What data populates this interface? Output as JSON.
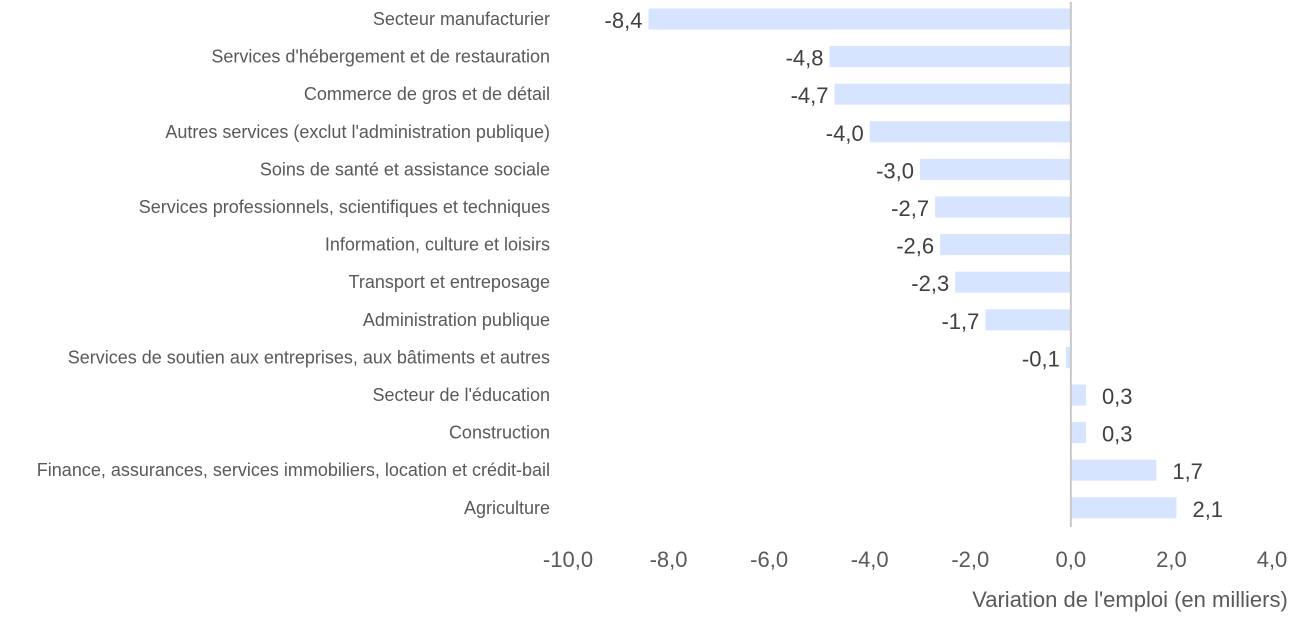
{
  "chart_data": {
    "type": "bar",
    "orientation": "horizontal",
    "categories": [
      "Secteur manufacturier",
      "Services d'hébergement et de restauration",
      "Commerce de gros et de détail",
      "Autres services (exclut l'administration publique)",
      "Soins de santé et assistance sociale",
      "Services professionnels, scientifiques et techniques",
      "Information, culture et loisirs",
      "Transport et entreposage",
      "Administration publique",
      "Services de soutien aux entreprises, aux bâtiments et autres",
      "Secteur de l'éducation",
      "Construction",
      "Finance, assurances, services immobiliers, location et crédit-bail",
      "Agriculture"
    ],
    "values": [
      -8.4,
      -4.8,
      -4.7,
      -4.0,
      -3.0,
      -2.7,
      -2.6,
      -2.3,
      -1.7,
      -0.1,
      0.3,
      0.3,
      1.7,
      2.1
    ],
    "value_labels": [
      "-8,4",
      "-4,8",
      "-4,7",
      "-4,0",
      "-3,0",
      "-2,7",
      "-2,6",
      "-2,3",
      "-1,7",
      "-0,1",
      "0,3",
      "0,3",
      "1,7",
      "2,1"
    ],
    "xlabel": "Variation de l'emploi (en milliers)",
    "ylabel": "",
    "xlim": [
      -10,
      4
    ],
    "xticks": [
      -10,
      -8,
      -6,
      -4,
      -2,
      0,
      2,
      4
    ],
    "xtick_labels": [
      "-10,0",
      "-8,0",
      "-6,0",
      "-4,0",
      "-2,0",
      "0,0",
      "2,0",
      "4,0"
    ],
    "grid": false,
    "bar_color": "#d6e4ff",
    "zero_line_color": "#c9c9c9"
  }
}
